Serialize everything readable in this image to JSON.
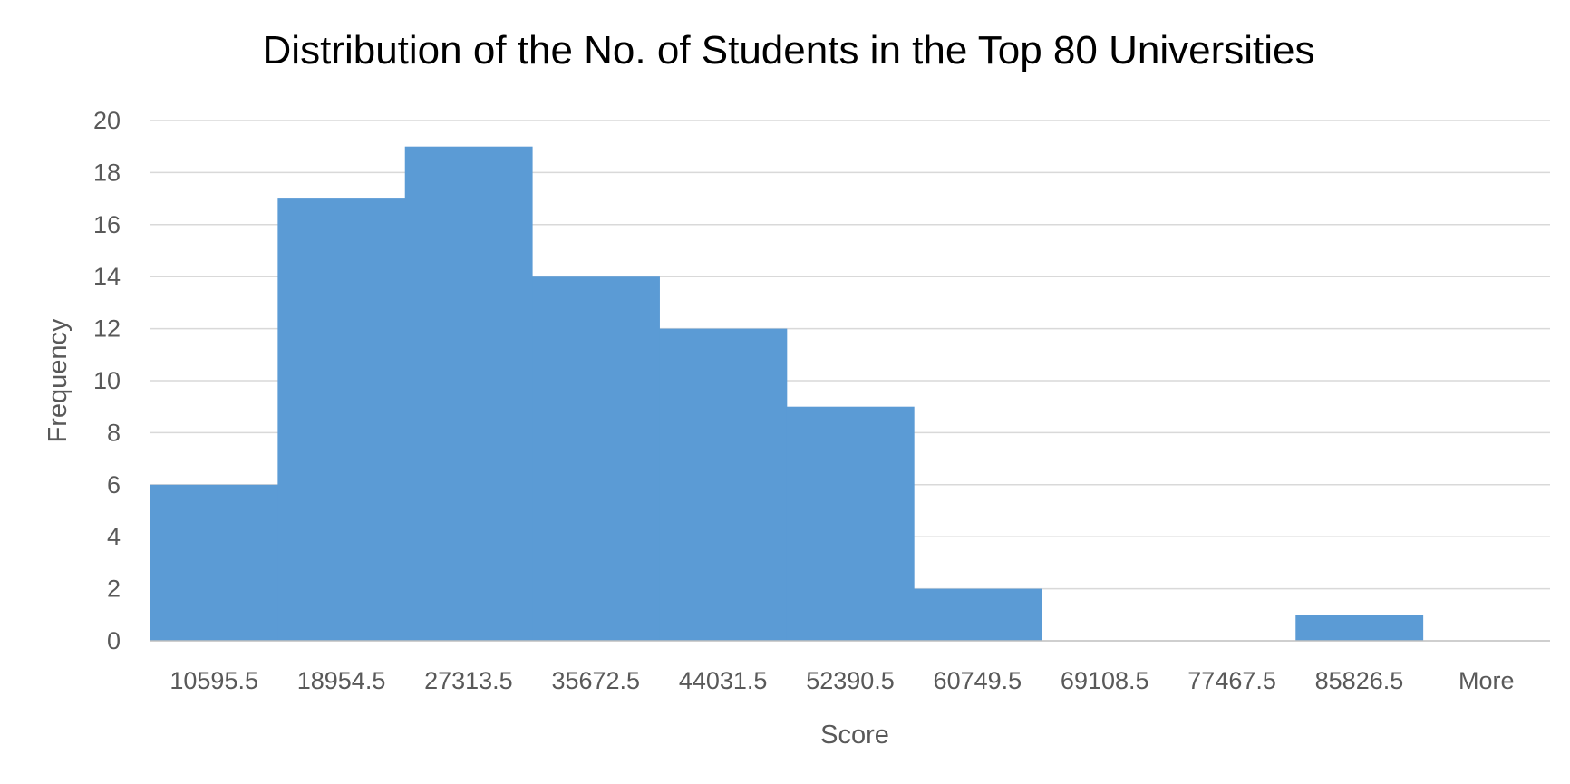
{
  "chart_data": {
    "type": "bar",
    "title": "Distribution of the No. of Students in the Top 80 Universities",
    "xlabel": "Score",
    "ylabel": "Frequency",
    "categories": [
      "10595.5",
      "18954.5",
      "27313.5",
      "35672.5",
      "44031.5",
      "52390.5",
      "60749.5",
      "69108.5",
      "77467.5",
      "85826.5",
      "More"
    ],
    "values": [
      6,
      17,
      19,
      14,
      12,
      9,
      2,
      0,
      0,
      1,
      0
    ],
    "ylim": [
      0,
      20
    ],
    "yticks": [
      "0",
      "2",
      "4",
      "6",
      "8",
      "10",
      "12",
      "14",
      "16",
      "18",
      "20"
    ],
    "grid": true,
    "legend": "none",
    "bar_color": "#5b9bd5"
  }
}
